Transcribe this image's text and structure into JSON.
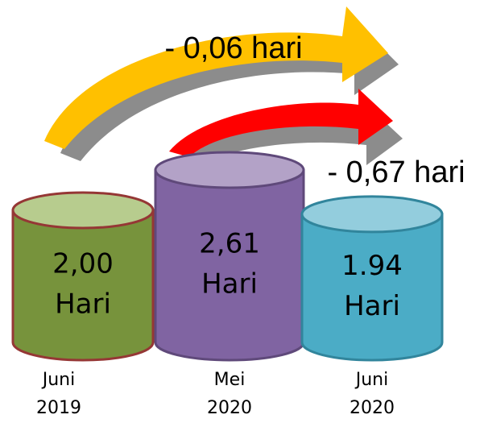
{
  "chart_data": {
    "type": "cylinder",
    "categories": [
      [
        "Juni",
        "2019"
      ],
      [
        "Mei",
        "2020"
      ],
      [
        "Juni",
        "2020"
      ]
    ],
    "values": [
      2.0,
      2.61,
      1.94
    ],
    "value_labels": [
      [
        "2,00",
        "Hari"
      ],
      [
        "2,61",
        "Hari"
      ],
      [
        "1.94",
        "Hari"
      ]
    ],
    "colors": [
      [
        "#77933c",
        "#b7cc8e"
      ],
      [
        "#8064a2",
        "#b3a2c7"
      ],
      [
        "#4bacc6",
        "#93cddd"
      ]
    ],
    "annotations": [
      "- 0,06 hari",
      "- 0,67 hari"
    ]
  }
}
